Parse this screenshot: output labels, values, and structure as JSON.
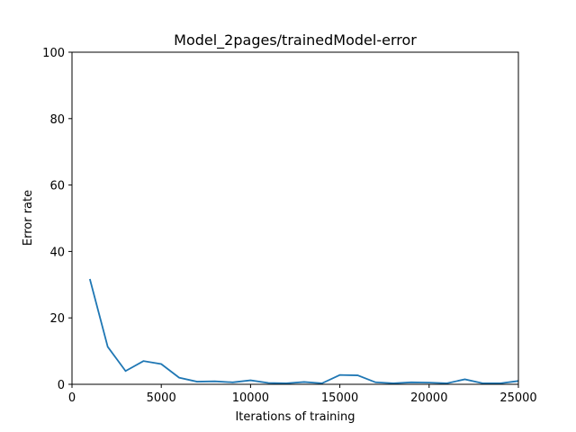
{
  "chart_data": {
    "type": "line",
    "title": "Model_2pages/trainedModel-error",
    "xlabel": "Iterations of training",
    "ylabel": "Error rate",
    "xlim": [
      0,
      25000
    ],
    "ylim": [
      0,
      100
    ],
    "xticks": [
      0,
      5000,
      10000,
      15000,
      20000,
      25000
    ],
    "yticks": [
      0,
      20,
      40,
      60,
      80,
      100
    ],
    "grid": false,
    "line_color": "#1f77b4",
    "series": [
      {
        "x": [
          1000,
          2000,
          3000,
          4000,
          5000,
          6000,
          7000,
          8000,
          9000,
          10000,
          11000,
          12000,
          13000,
          14000,
          15000,
          16000,
          17000,
          18000,
          19000,
          20000,
          21000,
          22000,
          23000,
          24000,
          25000
        ],
        "y": [
          31.7,
          11.3,
          4.0,
          7.0,
          6.1,
          2.0,
          0.8,
          0.9,
          0.6,
          1.2,
          0.4,
          0.3,
          0.7,
          0.3,
          2.8,
          2.7,
          0.6,
          0.3,
          0.6,
          0.5,
          0.3,
          1.5,
          0.3,
          0.3,
          1.0
        ]
      }
    ]
  }
}
